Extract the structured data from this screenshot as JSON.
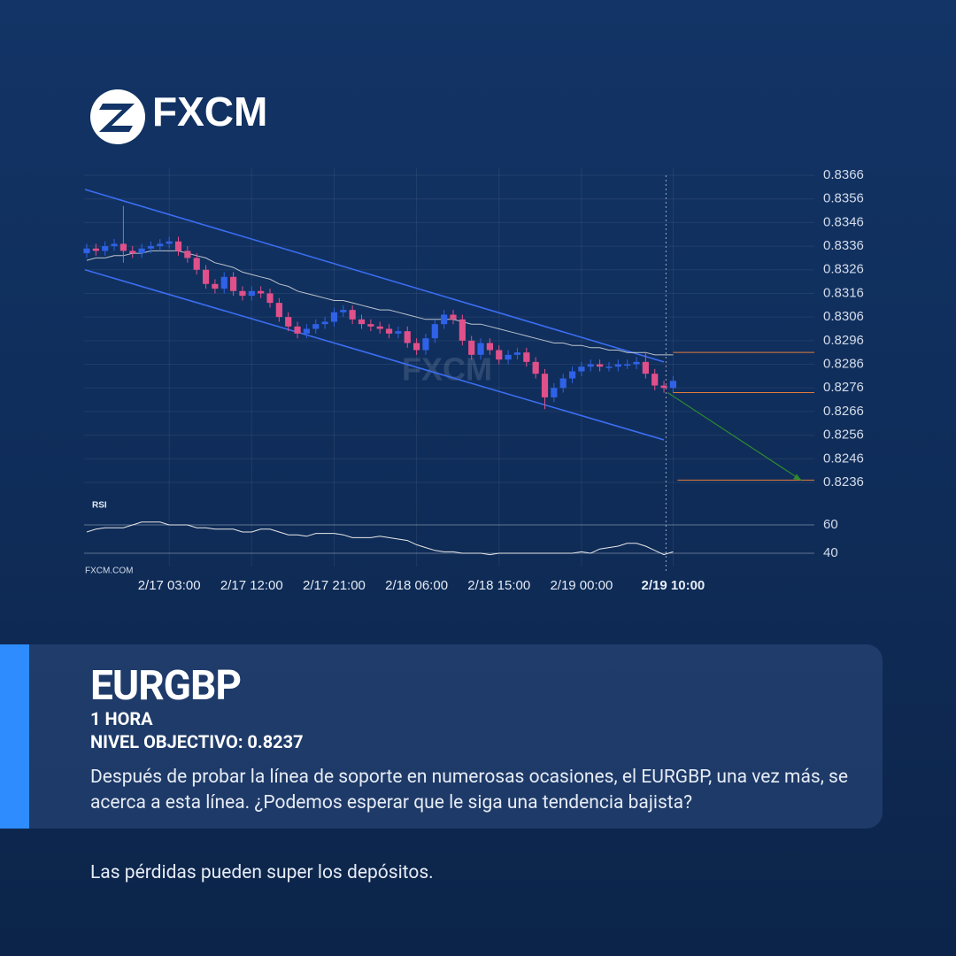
{
  "logo": "FXCM",
  "watermark": "FXCM",
  "chart_data": {
    "type": "candlestick",
    "categories": [
      null,
      null,
      null,
      null,
      null,
      null,
      null,
      null,
      null,
      "2/17 03:00",
      null,
      null,
      null,
      null,
      null,
      null,
      null,
      null,
      "2/17 12:00",
      null,
      null,
      null,
      null,
      null,
      null,
      null,
      null,
      "2/17 21:00",
      null,
      null,
      null,
      null,
      null,
      null,
      null,
      null,
      "2/18 06:00",
      null,
      null,
      null,
      null,
      null,
      null,
      null,
      null,
      "2/18 15:00",
      null,
      null,
      null,
      null,
      null,
      null,
      null,
      null,
      "2/19 00:00",
      null,
      null,
      null,
      null,
      null,
      null,
      null,
      null,
      null,
      "2/19 10:00"
    ],
    "open": [
      0.8333,
      0.8335,
      0.8334,
      0.8336,
      0.8337,
      0.8334,
      0.8333,
      0.8335,
      0.8336,
      0.8337,
      0.8338,
      0.8334,
      0.8331,
      0.8326,
      0.832,
      0.8318,
      0.8323,
      0.8317,
      0.8315,
      0.8317,
      0.8316,
      0.8312,
      0.8306,
      0.8302,
      0.8299,
      0.8301,
      0.8303,
      0.8304,
      0.8308,
      0.8309,
      0.8305,
      0.8303,
      0.8302,
      0.8301,
      0.8299,
      0.83,
      0.8295,
      0.8292,
      0.8297,
      0.8303,
      0.8307,
      0.8305,
      0.8296,
      0.829,
      0.8295,
      0.8292,
      0.8288,
      0.829,
      0.8291,
      0.8287,
      0.8282,
      0.8272,
      0.8276,
      0.828,
      0.8283,
      0.8285,
      0.8286,
      0.8285,
      0.8285,
      0.8286,
      0.8286,
      0.8287,
      0.8282,
      0.8277,
      0.8276
    ],
    "high": [
      0.8337,
      0.8337,
      0.8338,
      0.8339,
      0.8353,
      0.8336,
      0.8337,
      0.8338,
      0.8339,
      0.834,
      0.834,
      0.8336,
      0.8333,
      0.8328,
      0.8322,
      0.8325,
      0.8325,
      0.8319,
      0.8319,
      0.8319,
      0.8318,
      0.8314,
      0.8308,
      0.8304,
      0.8303,
      0.8305,
      0.8306,
      0.831,
      0.8311,
      0.8311,
      0.8307,
      0.8305,
      0.8304,
      0.8303,
      0.8302,
      0.8302,
      0.8297,
      0.8299,
      0.8305,
      0.8309,
      0.8309,
      0.8307,
      0.8298,
      0.8297,
      0.8297,
      0.8294,
      0.8292,
      0.8293,
      0.8293,
      0.8289,
      0.8284,
      0.8278,
      0.8282,
      0.8285,
      0.8287,
      0.8288,
      0.8288,
      0.8287,
      0.8288,
      0.8288,
      0.8289,
      0.8291,
      0.8284,
      0.8279,
      0.8281
    ],
    "low": [
      0.8331,
      0.8332,
      0.8332,
      0.8334,
      0.8329,
      0.8331,
      0.8331,
      0.8333,
      0.8334,
      0.8335,
      0.8332,
      0.8329,
      0.8324,
      0.8318,
      0.8316,
      0.8316,
      0.8315,
      0.8313,
      0.8313,
      0.8314,
      0.831,
      0.8304,
      0.83,
      0.8297,
      0.8297,
      0.8299,
      0.8301,
      0.8302,
      0.8306,
      0.8303,
      0.8301,
      0.83,
      0.8299,
      0.8297,
      0.8297,
      0.8293,
      0.829,
      0.829,
      0.8295,
      0.8301,
      0.8303,
      0.8294,
      0.8288,
      0.8288,
      0.829,
      0.8286,
      0.8286,
      0.8288,
      0.8285,
      0.828,
      0.8267,
      0.827,
      0.8274,
      0.8278,
      0.8281,
      0.8283,
      0.8283,
      0.8283,
      0.8283,
      0.8284,
      0.8284,
      0.828,
      0.8275,
      0.8274,
      0.8274
    ],
    "close": [
      0.8335,
      0.8334,
      0.8336,
      0.8337,
      0.8334,
      0.8333,
      0.8335,
      0.8336,
      0.8337,
      0.8338,
      0.8334,
      0.8331,
      0.8326,
      0.832,
      0.8318,
      0.8323,
      0.8317,
      0.8315,
      0.8317,
      0.8316,
      0.8312,
      0.8306,
      0.8302,
      0.8299,
      0.8301,
      0.8303,
      0.8304,
      0.8308,
      0.8309,
      0.8305,
      0.8303,
      0.8302,
      0.8301,
      0.8299,
      0.83,
      0.8295,
      0.8292,
      0.8297,
      0.8303,
      0.8307,
      0.8305,
      0.8296,
      0.829,
      0.8295,
      0.8292,
      0.8288,
      0.829,
      0.8291,
      0.8287,
      0.8282,
      0.8272,
      0.8276,
      0.828,
      0.8283,
      0.8285,
      0.8286,
      0.8285,
      0.8285,
      0.8286,
      0.8286,
      0.8287,
      0.8282,
      0.8277,
      0.8276,
      0.8279
    ],
    "color_up": "#2f62e6",
    "color_down": "#e0508a",
    "ylim": [
      0.823,
      0.8369
    ],
    "yticks": [
      0.8366,
      0.8356,
      0.8346,
      0.8336,
      0.8326,
      0.8316,
      0.8306,
      0.8296,
      0.8286,
      0.8276,
      0.8266,
      0.8256,
      0.8246,
      0.8236
    ],
    "grid": true,
    "moving_average": {
      "color": "#e8e8e8",
      "values": [
        0.833,
        0.8331,
        0.8331,
        0.8332,
        0.8332,
        0.8333,
        0.8333,
        0.8334,
        0.8334,
        0.8334,
        0.8334,
        0.8333,
        0.8332,
        0.8331,
        0.8329,
        0.8328,
        0.8327,
        0.8325,
        0.8324,
        0.8323,
        0.8322,
        0.832,
        0.8319,
        0.8317,
        0.8316,
        0.8315,
        0.8314,
        0.8313,
        0.8313,
        0.8312,
        0.8311,
        0.831,
        0.8309,
        0.8309,
        0.8308,
        0.8307,
        0.8306,
        0.8305,
        0.8305,
        0.8305,
        0.8305,
        0.8304,
        0.8303,
        0.8303,
        0.8302,
        0.8301,
        0.83,
        0.8299,
        0.8298,
        0.8297,
        0.8296,
        0.8295,
        0.8295,
        0.8294,
        0.8294,
        0.8293,
        0.8293,
        0.8292,
        0.8292,
        0.8291,
        0.8291,
        0.8291,
        0.829,
        0.829,
        0.829
      ]
    },
    "channel": {
      "color": "#3b6df0",
      "upper": [
        0.836,
        0.8287
      ],
      "lower": [
        0.8326,
        0.8254
      ]
    },
    "levels": {
      "color": "#e07a3a",
      "values": [
        0.8291,
        0.8274,
        0.8237
      ]
    },
    "projection_color": "#2f8a2f",
    "rsi": {
      "label": "RSI",
      "color": "#e8e8e8",
      "values": [
        55,
        57,
        58,
        58,
        58,
        60,
        62,
        62,
        62,
        60,
        60,
        60,
        58,
        58,
        57,
        57,
        57,
        55,
        55,
        57,
        57,
        55,
        53,
        53,
        52,
        54,
        54,
        54,
        53,
        51,
        51,
        51,
        52,
        51,
        50,
        49,
        46,
        44,
        42,
        41,
        41,
        40,
        40,
        40,
        39,
        40,
        40,
        40,
        40,
        40,
        40,
        40,
        40,
        40,
        41,
        40,
        43,
        44,
        45,
        47,
        47,
        45,
        42,
        39,
        41
      ],
      "ylim": [
        30,
        70
      ],
      "yticks": [
        40,
        60
      ]
    },
    "source": "FXCM.COM"
  },
  "card": {
    "symbol": "EURGBP",
    "timeframe": "1 HORA",
    "target": "NIVEL OBJECTIVO: 0.8237",
    "description": "Después de probar la línea de soporte en numerosas ocasiones, el EURGBP, una vez más, se acerca a esta línea. ¿Podemos esperar que le siga una tendencia bajista?"
  },
  "disclaimer": "Las pérdidas pueden super los depósitos."
}
